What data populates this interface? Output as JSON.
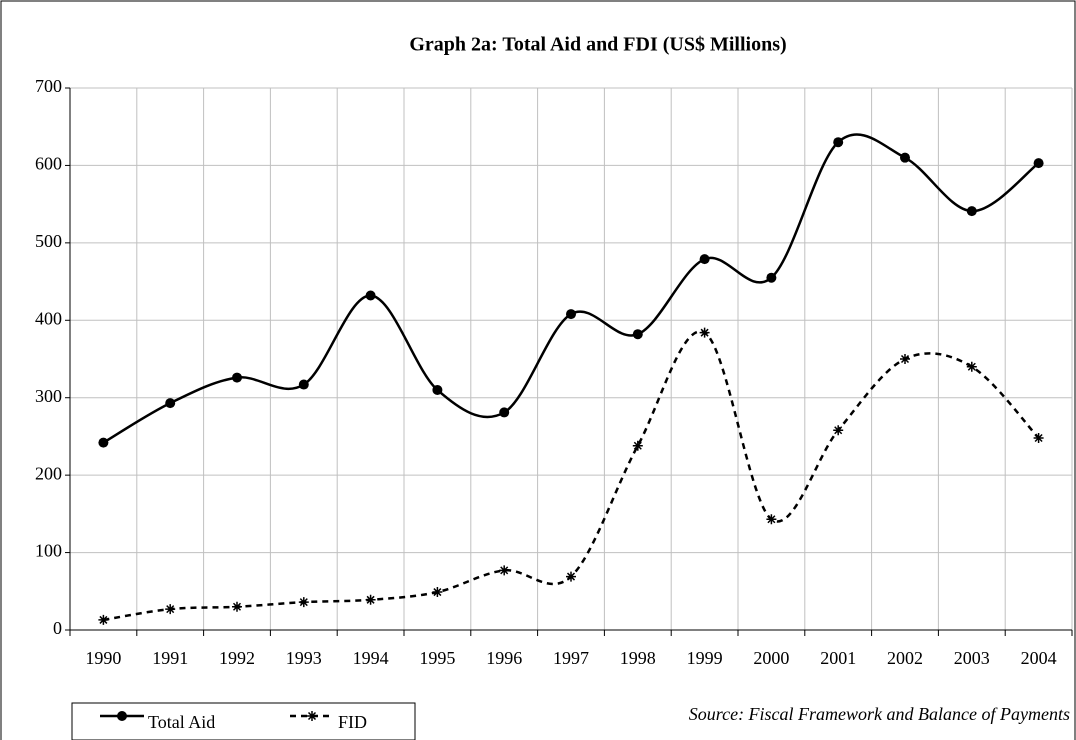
{
  "chart_data": {
    "type": "line",
    "title": "Graph 2a: Total Aid and FDI (US$ Millions)",
    "categories": [
      "1990",
      "1991",
      "1992",
      "1993",
      "1994",
      "1995",
      "1996",
      "1997",
      "1998",
      "1999",
      "2000",
      "2001",
      "2002",
      "2003",
      "2004"
    ],
    "series": [
      {
        "name": "Total Aid",
        "color": "#000000",
        "marker": "circle",
        "dash": false,
        "values": [
          242,
          293,
          326,
          317,
          432,
          310,
          281,
          408,
          382,
          479,
          455,
          630,
          610,
          541,
          603
        ]
      },
      {
        "name": "FID",
        "color": "#000000",
        "marker": "asterisk",
        "dash": true,
        "values": [
          13,
          27,
          30,
          36,
          39,
          49,
          77,
          69,
          238,
          384,
          143,
          258,
          350,
          340,
          248
        ]
      }
    ],
    "ylim": [
      0,
      700
    ],
    "yticks": [
      0,
      100,
      200,
      300,
      400,
      500,
      600,
      700
    ],
    "grid": true,
    "smooth": true,
    "legend": "bottom-left",
    "source": "Source: Fiscal Framework and Balance of Payments"
  }
}
